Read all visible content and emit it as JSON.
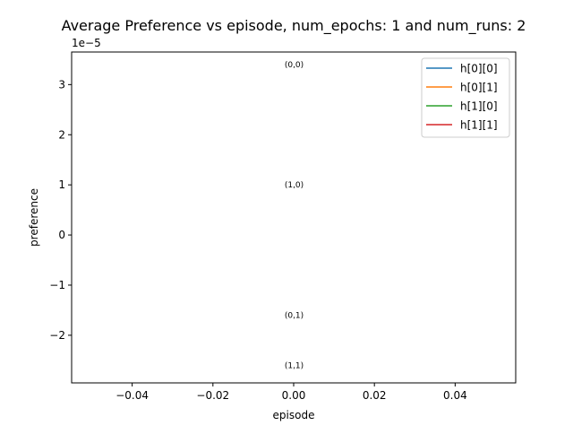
{
  "chart_data": {
    "type": "line",
    "title": "Average Preference vs episode, num_epochs: 1 and num_runs: 2",
    "xlabel": "episode",
    "ylabel": "preference",
    "y_offset_text": "1e−5",
    "xlim": [
      -0.055,
      0.055
    ],
    "ylim": [
      -2.95,
      3.65
    ],
    "y_scale_factor": 1e-05,
    "x_ticks": [
      {
        "value": -0.04,
        "label": "−0.04"
      },
      {
        "value": -0.02,
        "label": "−0.02"
      },
      {
        "value": 0.0,
        "label": "0.00"
      },
      {
        "value": 0.02,
        "label": "0.02"
      },
      {
        "value": 0.04,
        "label": "0.04"
      }
    ],
    "y_ticks": [
      {
        "value": -2,
        "label": "−2"
      },
      {
        "value": -1,
        "label": "−1"
      },
      {
        "value": 0,
        "label": "0"
      },
      {
        "value": 1,
        "label": "1"
      },
      {
        "value": 2,
        "label": "2"
      },
      {
        "value": 3,
        "label": "3"
      }
    ],
    "series": [
      {
        "name": "h[0][0]",
        "color": "#1f77b4",
        "x": [
          0
        ],
        "y": [
          3.4
        ]
      },
      {
        "name": "h[0][1]",
        "color": "#ff7f0e",
        "x": [
          0
        ],
        "y": [
          -1.6
        ]
      },
      {
        "name": "h[1][0]",
        "color": "#2ca02c",
        "x": [
          0
        ],
        "y": [
          1.0
        ]
      },
      {
        "name": "h[1][1]",
        "color": "#d62728",
        "x": [
          0
        ],
        "y": [
          -2.6
        ]
      }
    ],
    "annotations": [
      {
        "text": "(0,0)",
        "x": 0,
        "y": 3.4
      },
      {
        "text": "(1,0)",
        "x": 0,
        "y": 1.0
      },
      {
        "text": "(0,1)",
        "x": 0,
        "y": -1.6
      },
      {
        "text": "(1,1)",
        "x": 0,
        "y": -2.6
      }
    ],
    "grid": false,
    "legend_position": "upper right"
  }
}
